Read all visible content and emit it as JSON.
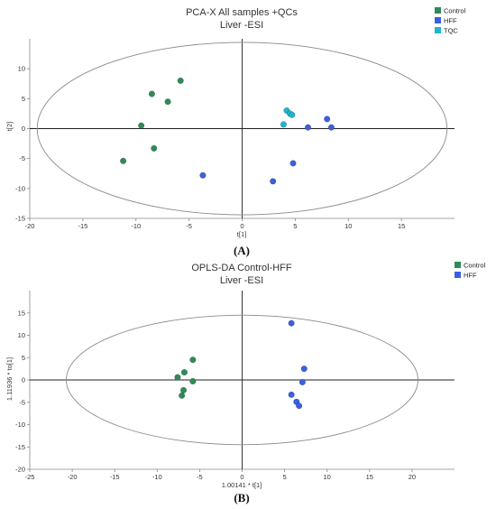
{
  "figure": {
    "panel_labels": [
      "(A)",
      "(B)"
    ]
  },
  "chart_data": [
    {
      "type": "scatter",
      "title": "PCA-X All samples +QCs",
      "subtitle": "Liver -ESI",
      "xlabel": "t[1]",
      "ylabel": "t[2]",
      "xlim": [
        -20,
        20
      ],
      "ylim": [
        -15,
        15
      ],
      "x_ticks": [
        -20,
        -15,
        -10,
        -5,
        0,
        5,
        10,
        15
      ],
      "y_ticks": [
        -15,
        -10,
        -5,
        0,
        5,
        10
      ],
      "ellipse": {
        "cx": 0,
        "cy": 0,
        "rx": 19.3,
        "ry": 14.4
      },
      "grid": false,
      "legend_position": "top-right",
      "series": [
        {
          "name": "Control",
          "color": "#2e8b57",
          "points": [
            [
              -8.5,
              5.8
            ],
            [
              -7,
              4.5
            ],
            [
              -5.8,
              8.0
            ],
            [
              -9.5,
              0.5
            ],
            [
              -8.3,
              -3.3
            ],
            [
              -11.2,
              -5.4
            ]
          ]
        },
        {
          "name": "HFF",
          "color": "#3a5fe0",
          "points": [
            [
              -3.7,
              -7.8
            ],
            [
              2.9,
              -8.8
            ],
            [
              4.8,
              -5.8
            ],
            [
              6.2,
              0.2
            ],
            [
              8.0,
              1.6
            ],
            [
              8.4,
              0.2
            ]
          ]
        },
        {
          "name": "TQC",
          "color": "#1fb5cf",
          "points": [
            [
              4.2,
              3.0
            ],
            [
              4.5,
              2.5
            ],
            [
              4.7,
              2.3
            ],
            [
              3.9,
              0.7
            ]
          ]
        }
      ]
    },
    {
      "type": "scatter",
      "title": "OPLS-DA Control-HFF",
      "subtitle": "Liver -ESI",
      "xlabel": "1.00141 * t[1]",
      "ylabel": "1.11936 * to[1]",
      "xlim": [
        -25,
        25
      ],
      "ylim": [
        -20,
        20
      ],
      "x_ticks": [
        -25,
        -20,
        -15,
        -10,
        -5,
        0,
        5,
        10,
        15,
        20
      ],
      "y_ticks": [
        -20,
        -15,
        -10,
        -5,
        0,
        5,
        10,
        15
      ],
      "ellipse": {
        "cx": 0,
        "cy": 0,
        "rx": 20.7,
        "ry": 14.5
      },
      "grid": false,
      "legend_position": "top-right",
      "series": [
        {
          "name": "Control",
          "color": "#2e8b57",
          "points": [
            [
              -5.8,
              4.5
            ],
            [
              -6.8,
              1.7
            ],
            [
              -7.6,
              0.6
            ],
            [
              -5.8,
              -0.3
            ],
            [
              -6.9,
              -2.3
            ],
            [
              -7.1,
              -3.5
            ]
          ]
        },
        {
          "name": "HFF",
          "color": "#3a5fe0",
          "points": [
            [
              5.8,
              12.7
            ],
            [
              7.3,
              2.5
            ],
            [
              7.1,
              -0.5
            ],
            [
              5.8,
              -3.3
            ],
            [
              6.4,
              -4.9
            ],
            [
              6.7,
              -5.8
            ]
          ]
        }
      ]
    }
  ]
}
